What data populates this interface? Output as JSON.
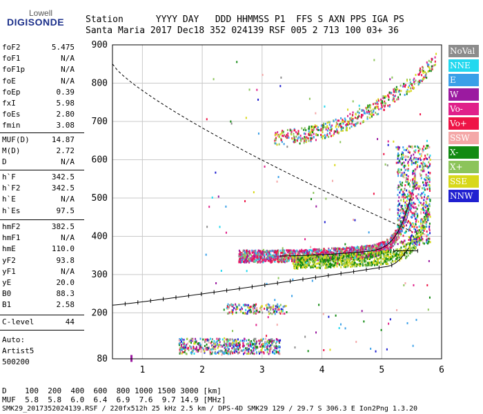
{
  "logo": {
    "line1": "Lowell",
    "line2": "DIGISONDE"
  },
  "header": {
    "labels_row": "Station      YYYY DAY   DDD HHMMSS P1  FFS S AXN PPS IGA PS",
    "values_row": "Santa Maria 2017 Dec18 352 024139 RSF 005 2 713 100 03+ 36"
  },
  "params_group1": [
    {
      "name": "foF2",
      "value": "5.475"
    },
    {
      "name": "foF1",
      "value": "N/A"
    },
    {
      "name": "foF1p",
      "value": "N/A"
    },
    {
      "name": "foE",
      "value": "N/A"
    },
    {
      "name": "foEp",
      "value": "0.39"
    },
    {
      "name": "fxI",
      "value": "5.98"
    },
    {
      "name": "foEs",
      "value": "2.80"
    },
    {
      "name": "fmin",
      "value": "3.08"
    }
  ],
  "params_group2": [
    {
      "name": "MUF(D)",
      "value": "14.87"
    },
    {
      "name": "M(D)",
      "value": "2.72"
    },
    {
      "name": "D",
      "value": "N/A"
    }
  ],
  "params_group3": [
    {
      "name": "h`F",
      "value": "342.5"
    },
    {
      "name": "h`F2",
      "value": "342.5"
    },
    {
      "name": "h`E",
      "value": "N/A"
    },
    {
      "name": "h`Es",
      "value": "97.5"
    }
  ],
  "params_group4": [
    {
      "name": "hmF2",
      "value": "382.5"
    },
    {
      "name": "hmF1",
      "value": "N/A"
    },
    {
      "name": "hmE",
      "value": "110.0"
    },
    {
      "name": "yF2",
      "value": "93.8"
    },
    {
      "name": "yF1",
      "value": "N/A"
    },
    {
      "name": "yE",
      "value": "20.0"
    },
    {
      "name": "B0",
      "value": "88.3"
    },
    {
      "name": "B1",
      "value": "2.58"
    }
  ],
  "params_group5": [
    {
      "name": "C-level",
      "value": "44"
    }
  ],
  "auto": {
    "line1": "Auto:",
    "line2": "Artist5",
    "line3": "500200"
  },
  "legend": [
    {
      "label": "NoVal",
      "color": "#8c8c8c"
    },
    {
      "label": "NNE",
      "color": "#22d8ef"
    },
    {
      "label": "E",
      "color": "#3aa0e8"
    },
    {
      "label": "W",
      "color": "#9b1aa0"
    },
    {
      "label": "Vo-",
      "color": "#e0208a"
    },
    {
      "label": "Vo+",
      "color": "#ee1446"
    },
    {
      "label": "SSW",
      "color": "#f4a8a8"
    },
    {
      "label": "X-",
      "color": "#128a12"
    },
    {
      "label": "X+",
      "color": "#8cc45a"
    },
    {
      "label": "SSE",
      "color": "#d8d81a"
    },
    {
      "label": "NNW",
      "color": "#2020d0"
    }
  ],
  "chart_data": {
    "type": "scatter",
    "x_ticks": [
      "1",
      "2",
      "3",
      "4",
      "5",
      "6"
    ],
    "y_ticks": [
      "80",
      "200",
      "300",
      "400",
      "500",
      "600",
      "700",
      "800",
      "900"
    ],
    "xlim": [
      0.5,
      6.0
    ],
    "ylim_labels": [
      80,
      900
    ],
    "grid": true
  },
  "bottom": {
    "line1": "D    100  200  400  600  800 1000 1500 3000 [km]",
    "line2": "MUF  5.8  5.8  6.0  6.4  6.9  7.6  9.7 14.9 [MHz]",
    "line3": "SMK29_2017352024139.RSF / 220fx512h 25 kHz 2.5 km / DPS-4D SMK29 129 / 29.7 S 306.3 E Ion2Png 1.3.20"
  }
}
